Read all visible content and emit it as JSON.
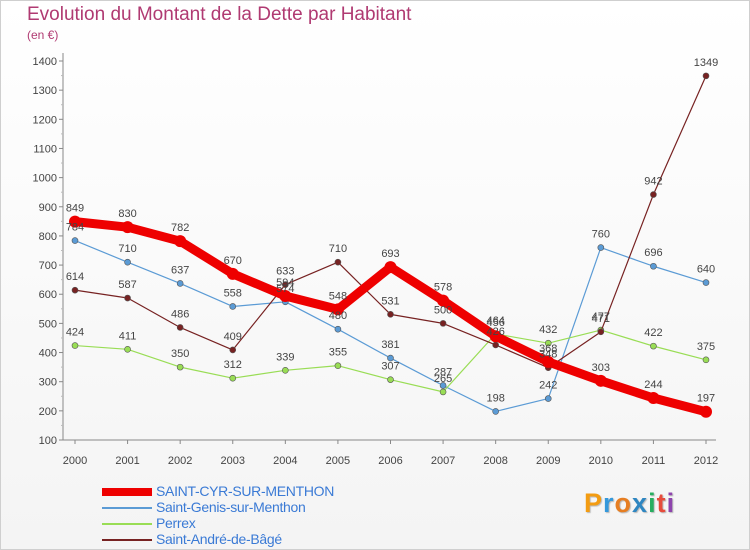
{
  "header": {
    "title": "Evolution du Montant de la Dette par Habitant",
    "subtitle": "(en €)"
  },
  "colors": {
    "title": "#b03a72",
    "saint_cyr": "#ee0000",
    "saint_genis": "#5b9bd5",
    "perrex": "#99dd55",
    "saint_andre": "#772222",
    "axis": "#999999",
    "labels": "#444444"
  },
  "chart_data": {
    "type": "line",
    "x": [
      "2000",
      "2001",
      "2002",
      "2003",
      "2004",
      "2005",
      "2006",
      "2007",
      "2008",
      "2009",
      "2010",
      "2011",
      "2012"
    ],
    "ylim": [
      100,
      1400
    ],
    "yticks": [
      100,
      200,
      300,
      400,
      500,
      600,
      700,
      800,
      900,
      1000,
      1100,
      1200,
      1300,
      1400
    ],
    "grid": false,
    "legend_position": "bottom-left",
    "series": [
      {
        "name": "SAINT-CYR-SUR-MENTHON",
        "color": "#ee0000",
        "values": [
          849,
          830,
          782,
          670,
          594,
          548,
          693,
          578,
          456,
          368,
          303,
          244,
          197
        ]
      },
      {
        "name": "Saint-Genis-sur-Menthon",
        "color": "#5b9bd5",
        "values": [
          784,
          710,
          637,
          558,
          574,
          480,
          381,
          287,
          198,
          242,
          760,
          696,
          640
        ]
      },
      {
        "name": "Perrex",
        "color": "#99dd55",
        "values": [
          424,
          411,
          350,
          312,
          339,
          355,
          307,
          265,
          464,
          432,
          477,
          422,
          375
        ]
      },
      {
        "name": "Saint-André-de-Bâgé",
        "color": "#772222",
        "values": [
          614,
          587,
          486,
          409,
          633,
          710,
          531,
          500,
          426,
          348,
          471,
          942,
          1349
        ]
      }
    ]
  },
  "legend": {
    "items": [
      {
        "label": "SAINT-CYR-SUR-MENTHON",
        "color": "#ee0000"
      },
      {
        "label": "Saint-Genis-sur-Menthon",
        "color": "#5b9bd5"
      },
      {
        "label": "Perrex",
        "color": "#99dd55"
      },
      {
        "label": "Saint-André-de-Bâgé",
        "color": "#772222"
      }
    ]
  },
  "logo": {
    "text": "Proxiti"
  }
}
